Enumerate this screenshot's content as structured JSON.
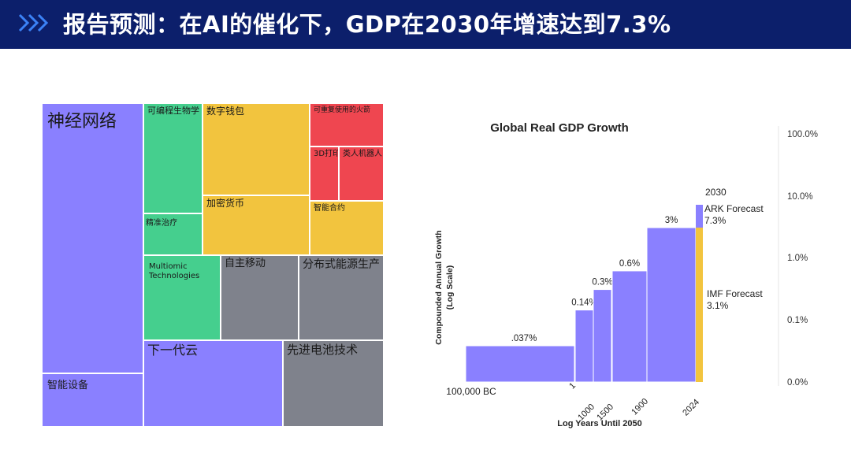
{
  "header": {
    "title": "报告预测：在AI的催化下，GDP在2030年增速达到7.3%",
    "bg_color": "#0c1f6b",
    "chevron_icon": "double-chevron-right-icon"
  },
  "treemap": {
    "colors": {
      "purple": "#8a80ff",
      "green": "#45cf8e",
      "yellow": "#f2c43e",
      "red": "#ef4650",
      "gray": "#7f828c"
    },
    "tiles": [
      {
        "id": "neural-networks",
        "label": "神经网络",
        "color": "purple"
      },
      {
        "id": "smart-devices",
        "label": "智能设备",
        "color": "purple"
      },
      {
        "id": "programmable-biology",
        "label": "可编程生物学",
        "color": "green"
      },
      {
        "id": "precision-therapy",
        "label": "精准治疗",
        "color": "green"
      },
      {
        "id": "digital-wallet",
        "label": "数字钱包",
        "color": "yellow"
      },
      {
        "id": "cryptocurrency",
        "label": "加密货币",
        "color": "yellow"
      },
      {
        "id": "reusable-rockets",
        "label": "可重复使用的火箭",
        "color": "red"
      },
      {
        "id": "3d-printing",
        "label": "3D打印",
        "color": "red"
      },
      {
        "id": "humanoid-robots",
        "label": "类人机器人",
        "color": "red"
      },
      {
        "id": "smart-contracts",
        "label": "智能合约",
        "color": "yellow"
      },
      {
        "id": "multiomic-technologies",
        "label": "Multiomic Technologies",
        "color": "green"
      },
      {
        "id": "autonomous-mobility",
        "label": "自主移动",
        "color": "gray"
      },
      {
        "id": "distributed-energy",
        "label": "分布式能源生产",
        "color": "gray"
      },
      {
        "id": "next-gen-cloud",
        "label": "下一代云",
        "color": "purple"
      },
      {
        "id": "advanced-battery",
        "label": "先进电池技术",
        "color": "gray"
      }
    ]
  },
  "chart_data": {
    "type": "bar",
    "title": "Global Real GDP Growth",
    "xlabel": "Log Years Until 2050",
    "ylabel": "Compounded Annual Growth (Log Scale)",
    "yscale": "log",
    "y_ticks": [
      "100.0%",
      "10.0%",
      "1.0%",
      "0.1%",
      "0.0%"
    ],
    "x_ticks": [
      "100,000 BC",
      "1",
      "1000",
      "1500",
      "1900",
      "2024"
    ],
    "bars_color": "#8a80ff",
    "series": [
      {
        "start": "100,000 BC",
        "end": "1",
        "value": 0.037,
        "label": ".037%"
      },
      {
        "start": "1",
        "end": "1000",
        "value": 0.14,
        "label": "0.14%"
      },
      {
        "start": "1000",
        "end": "1500",
        "value": 0.3,
        "label": "0.3%"
      },
      {
        "start": "1500",
        "end": "1900",
        "value": 0.6,
        "label": "0.6%"
      },
      {
        "start": "1900",
        "end": "2024",
        "value": 3,
        "label": "3%"
      }
    ],
    "forecasts": [
      {
        "name": "ARK Forecast",
        "value": 7.3,
        "label": "7.3%",
        "year": "2030",
        "color": "#8a80ff"
      },
      {
        "name": "IMF Forecast",
        "value": 3.1,
        "label": "3.1%",
        "color": "#f2c43e"
      }
    ]
  }
}
